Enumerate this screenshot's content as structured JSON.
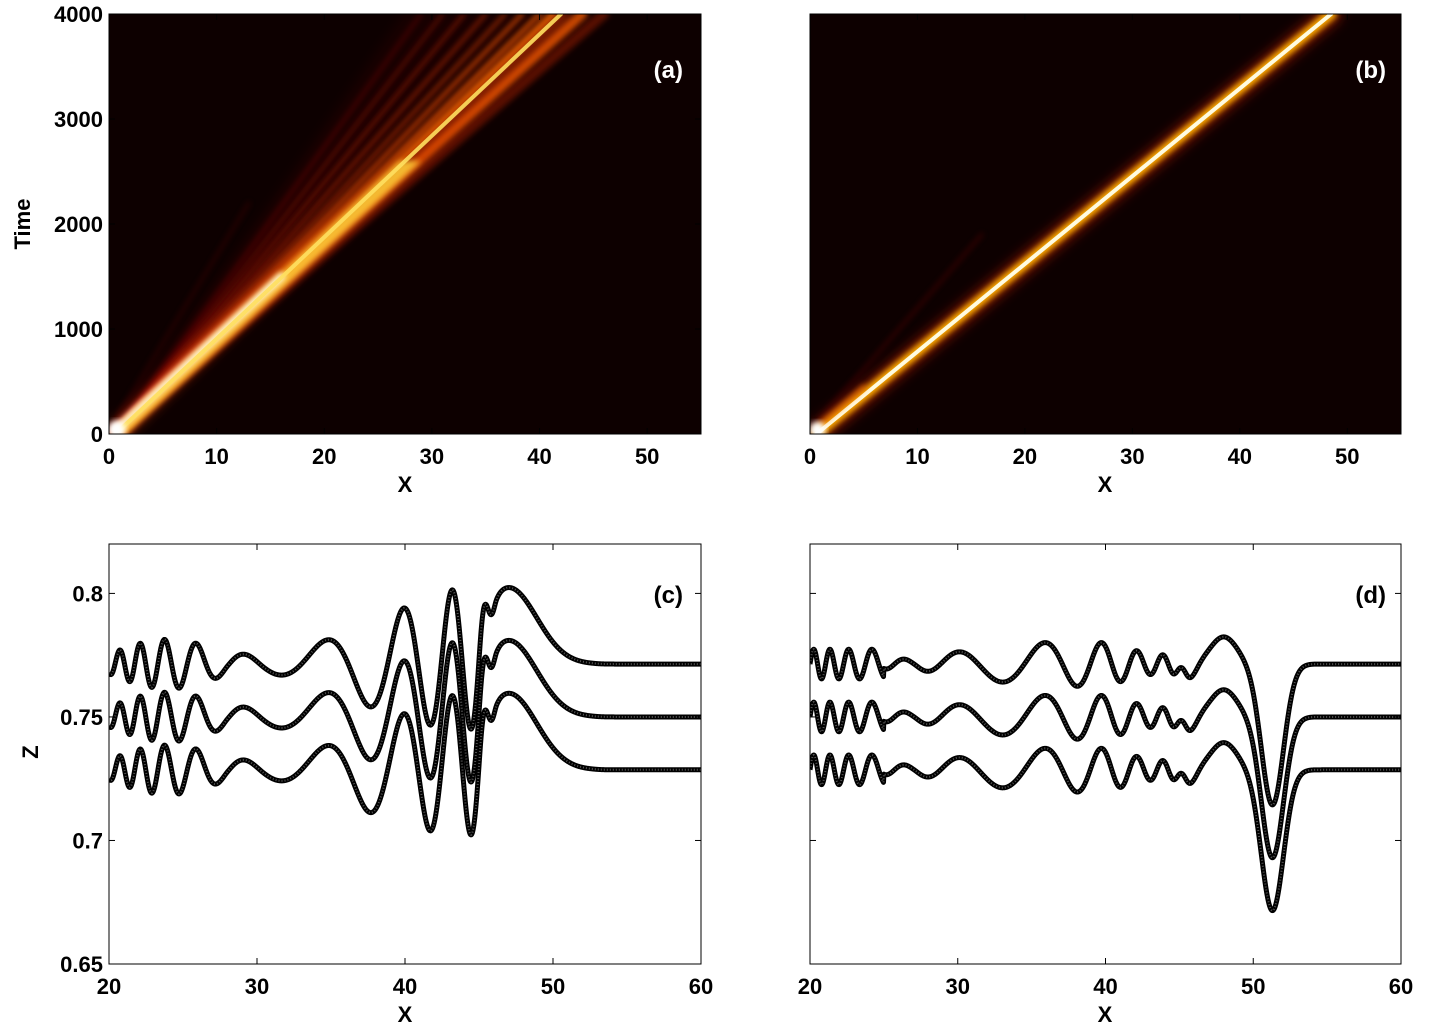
{
  "chart_data": [
    {
      "id": "a",
      "type": "heatmap",
      "panel_label": "(a)",
      "xlabel": "X",
      "ylabel": "Time",
      "xlim": [
        0,
        55
      ],
      "ylim": [
        0,
        4000
      ],
      "xticks": [
        "0",
        "10",
        "20",
        "30",
        "40",
        "50"
      ],
      "yticks": [
        "0",
        "1000",
        "2000",
        "3000",
        "4000"
      ],
      "colormap": "hot",
      "background_color": "#0d0000",
      "description_values": {
        "start": [
          0.6,
          0
        ],
        "main_ridge_end": [
          42.0,
          4000
        ],
        "spread_end": [
          [
            28,
            4000
          ],
          [
            46,
            4000
          ]
        ]
      }
    },
    {
      "id": "b",
      "type": "heatmap",
      "panel_label": "(b)",
      "xlabel": "X",
      "ylabel": "",
      "xlim": [
        0,
        55
      ],
      "ylim": [
        0,
        4000
      ],
      "xticks": [
        "0",
        "10",
        "20",
        "30",
        "40",
        "50"
      ],
      "yticks": [],
      "colormap": "hot",
      "background_color": "#0d0000",
      "description_values": {
        "start": [
          0.6,
          0
        ],
        "main_ridge_end": [
          48.5,
          4000
        ]
      }
    },
    {
      "id": "c",
      "type": "line",
      "panel_label": "(c)",
      "xlabel": "X",
      "ylabel": "Z",
      "xlim": [
        20,
        60
      ],
      "ylim": [
        0.65,
        0.82
      ],
      "xticks": [
        "20",
        "30",
        "40",
        "50",
        "60"
      ],
      "yticks": [
        "0.65",
        "0.7",
        "0.75",
        "0.8"
      ],
      "series": [
        {
          "offset": 0.7714
        },
        {
          "offset": 0.75
        },
        {
          "offset": 0.7286
        }
      ],
      "line_color": "#333333",
      "profile": {
        "front_x": 47.0,
        "front_peak": 0.031,
        "flat_after_x": 53.5,
        "max_oscillation_amplitude": 0.052,
        "max_oscillation_x": 43.0
      }
    },
    {
      "id": "d",
      "type": "line",
      "panel_label": "(d)",
      "xlabel": "X",
      "ylabel": "",
      "xlim": [
        20,
        60
      ],
      "ylim": [
        0.65,
        0.82
      ],
      "xticks": [
        "20",
        "30",
        "40",
        "50",
        "60"
      ],
      "yticks": [],
      "series": [
        {
          "offset": 0.7714
        },
        {
          "offset": 0.75
        },
        {
          "offset": 0.7286
        }
      ],
      "line_color": "#333333",
      "profile": {
        "trough_x": 51.3,
        "trough_depth": -0.057,
        "hump_x": 48.0,
        "hump_height": 0.011,
        "flat_after_x": 55.0,
        "max_oscillation_amplitude": 0.009
      }
    }
  ]
}
